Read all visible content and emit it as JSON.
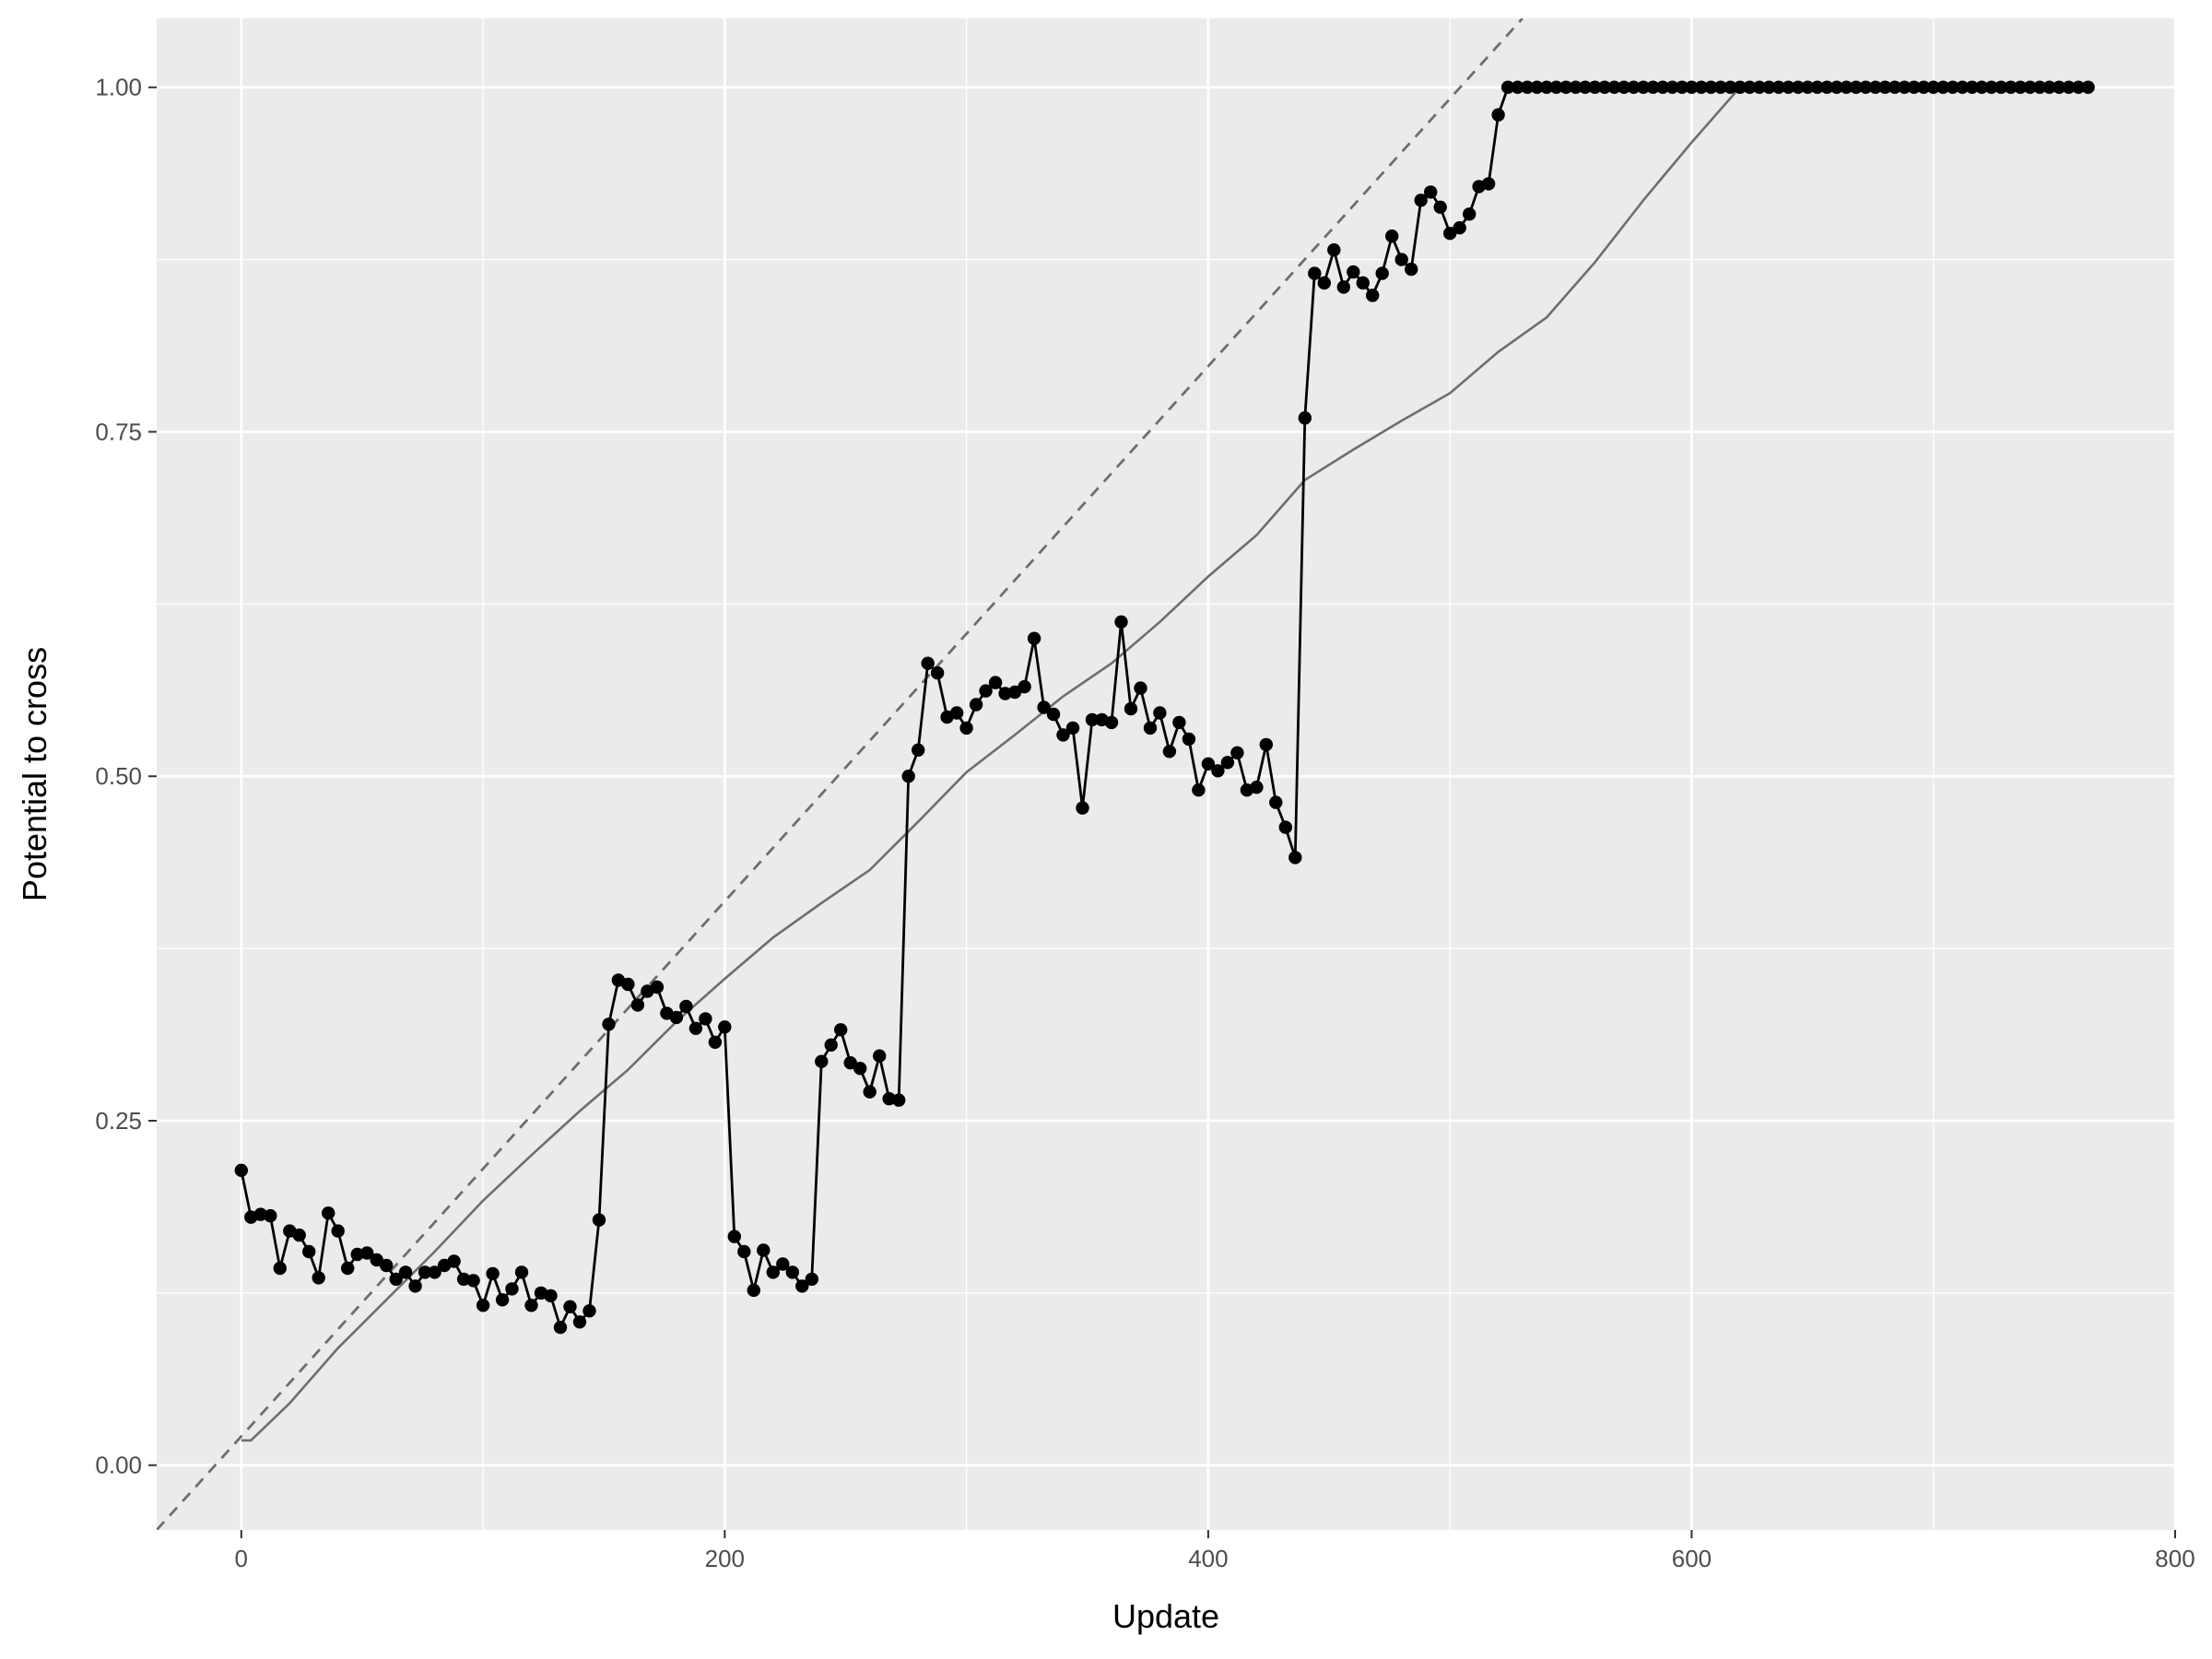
{
  "chart_data": {
    "type": "line",
    "title": "",
    "xlabel": "Update",
    "ylabel": "Potential to cross",
    "xlim": [
      -35,
      800
    ],
    "ylim": [
      -0.047,
      1.05
    ],
    "grid": true,
    "legend": "none",
    "x_ticks": [
      0,
      200,
      400,
      600,
      800
    ],
    "x_tick_labels": [
      "0",
      "200",
      "400",
      "600",
      "800"
    ],
    "y_ticks": [
      0,
      0.25,
      0.5,
      0.75,
      1.0
    ],
    "y_tick_labels": [
      "0.00",
      "0.25",
      "0.50",
      "0.75",
      "1.00"
    ],
    "colors": {
      "panel": "#ebebeb",
      "grid": "#ffffff",
      "points": "#000000",
      "reference": "#6e6e6e",
      "dashed": "#6e6e6e",
      "text": "#4d4d4d"
    },
    "series": [
      {
        "style": "points-line",
        "x": [
          0,
          4,
          8,
          12,
          16,
          20,
          24,
          28,
          32,
          36,
          40,
          44,
          48,
          52,
          56,
          60,
          64,
          68,
          72,
          76,
          80,
          84,
          88,
          92,
          96,
          100,
          104,
          108,
          112,
          116,
          120,
          124,
          128,
          132,
          136,
          140,
          144,
          148,
          152,
          156,
          160,
          164,
          168,
          172,
          176,
          180,
          184,
          188,
          192,
          196,
          200,
          204,
          208,
          212,
          216,
          220,
          224,
          228,
          232,
          236,
          240,
          244,
          248,
          252,
          256,
          260,
          264,
          268,
          272,
          276,
          280,
          284,
          288,
          292,
          296,
          300,
          304,
          308,
          312,
          316,
          320,
          324,
          328,
          332,
          336,
          340,
          344,
          348,
          352,
          356,
          360,
          364,
          368,
          372,
          376,
          380,
          384,
          388,
          392,
          396,
          400,
          404,
          408,
          412,
          416,
          420,
          424,
          428,
          432,
          436,
          440,
          444,
          448,
          452,
          456,
          460,
          464,
          468,
          472,
          476,
          480,
          484,
          488,
          492,
          496,
          500,
          504,
          508,
          512,
          516,
          520,
          524
        ],
        "y": [
          0.214,
          0.18,
          0.182,
          0.181,
          0.143,
          0.17,
          0.167,
          0.155,
          0.136,
          0.183,
          0.17,
          0.143,
          0.153,
          0.154,
          0.149,
          0.145,
          0.135,
          0.14,
          0.13,
          0.14,
          0.14,
          0.145,
          0.148,
          0.135,
          0.134,
          0.116,
          0.139,
          0.12,
          0.128,
          0.14,
          0.116,
          0.125,
          0.123,
          0.1,
          0.115,
          0.104,
          0.112,
          0.178,
          0.32,
          0.352,
          0.349,
          0.334,
          0.344,
          0.347,
          0.328,
          0.325,
          0.333,
          0.317,
          0.324,
          0.307,
          0.318,
          0.166,
          0.155,
          0.127,
          0.156,
          0.14,
          0.146,
          0.14,
          0.13,
          0.135,
          0.293,
          0.305,
          0.316,
          0.292,
          0.288,
          0.271,
          0.297,
          0.266,
          0.265,
          0.5,
          0.519,
          0.582,
          0.575,
          0.543,
          0.546,
          0.535,
          0.552,
          0.562,
          0.568,
          0.56,
          0.561,
          0.565,
          0.6,
          0.55,
          0.545,
          0.53,
          0.535,
          0.477,
          0.541,
          0.541,
          0.539,
          0.612,
          0.549,
          0.564,
          0.535,
          0.546,
          0.518,
          0.539,
          0.527,
          0.49,
          0.509,
          0.504,
          0.51,
          0.517,
          0.49,
          0.492,
          0.523,
          0.481,
          0.463,
          0.441,
          0.76,
          0.865,
          0.858,
          0.882,
          0.855,
          0.866,
          0.858,
          0.849,
          0.865,
          0.892,
          0.875,
          0.868,
          0.918,
          0.924,
          0.913,
          0.894,
          0.898,
          0.908,
          0.928,
          0.93,
          0.98,
          1.0
        ],
        "plateau": {
          "x_start": 528,
          "x_end": 764,
          "step": 4,
          "y": 1.0
        }
      },
      {
        "style": "reference-line",
        "x": [
          0,
          4,
          20,
          40,
          60,
          80,
          100,
          120,
          140,
          160,
          180,
          200,
          220,
          240,
          260,
          280,
          300,
          320,
          340,
          360,
          380,
          400,
          420,
          440,
          460,
          480,
          500,
          520,
          540,
          560,
          580,
          600,
          620,
          764
        ],
        "y": [
          0.018,
          0.018,
          0.045,
          0.085,
          0.12,
          0.155,
          0.192,
          0.225,
          0.257,
          0.287,
          0.322,
          0.353,
          0.383,
          0.408,
          0.432,
          0.467,
          0.503,
          0.53,
          0.558,
          0.582,
          0.612,
          0.645,
          0.675,
          0.715,
          0.737,
          0.758,
          0.778,
          0.808,
          0.833,
          0.873,
          0.918,
          0.96,
          1.0,
          1.0
        ]
      },
      {
        "style": "dashed-line",
        "x": [
          -35,
          530
        ],
        "y": [
          -0.047,
          1.05
        ]
      }
    ]
  }
}
